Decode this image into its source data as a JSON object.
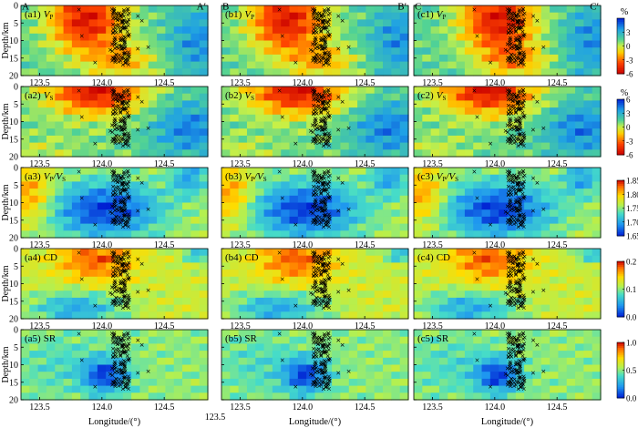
{
  "figure": {
    "xlabel": "Longitude/(°)",
    "ylabel": "Depth/km",
    "xticks": [
      "123.5",
      "124.0",
      "124.5"
    ],
    "yticks": [
      "0",
      "5",
      "10",
      "15",
      "20"
    ],
    "profile_labels": [
      {
        "start": "A",
        "end": "A′"
      },
      {
        "start": "B",
        "end": "B′"
      },
      {
        "start": "C",
        "end": "C′"
      }
    ],
    "edge_tick": "123.5"
  },
  "chart_data": {
    "type": "heatmap",
    "x_range": [
      123.35,
      124.85
    ],
    "y_range": [
      0,
      20
    ],
    "y_inverted": true,
    "rows": [
      {
        "row": "Vp",
        "panel_labels": [
          {
            "id": "(a1)",
            "text": "V",
            "sub": "P"
          },
          {
            "id": "(b1)",
            "text": "V",
            "sub": "P"
          },
          {
            "id": "(c1)",
            "text": "V",
            "sub": "P"
          }
        ],
        "colorbar": {
          "unit": "%",
          "ticks": [
            "3",
            "0",
            "-3",
            "-6"
          ],
          "range": [
            -6,
            6
          ],
          "palette": "anomaly"
        }
      },
      {
        "row": "Vs",
        "panel_labels": [
          {
            "id": "(a2)",
            "text": "V",
            "sub": "S"
          },
          {
            "id": "(b2)",
            "text": "V",
            "sub": "S"
          },
          {
            "id": "(c2)",
            "text": "V",
            "sub": "S"
          }
        ],
        "colorbar": {
          "unit": "%",
          "ticks": [
            "6",
            "3",
            "0",
            "-3",
            "-6"
          ],
          "range": [
            -6,
            6
          ],
          "palette": "anomaly"
        }
      },
      {
        "row": "Vp/Vs",
        "panel_labels": [
          {
            "id": "(a3)",
            "text": "V",
            "sub": "P",
            "text2": "/V",
            "sub2": "S"
          },
          {
            "id": "(b3)",
            "text": "V",
            "sub": "P",
            "text2": "/V",
            "sub2": "S"
          },
          {
            "id": "(c3)",
            "text": "V",
            "sub": "P",
            "text2": "/V",
            "sub2": "S"
          }
        ],
        "colorbar": {
          "unit": "",
          "ticks": [
            "1.85",
            "1.80",
            "1.75",
            "1.70",
            "1.65"
          ],
          "range": [
            1.65,
            1.85
          ],
          "palette": "ratio"
        }
      },
      {
        "row": "CD",
        "panel_labels": [
          {
            "id": "(a4)",
            "text": "CD"
          },
          {
            "id": "(b4)",
            "text": "CD"
          },
          {
            "id": "(c4)",
            "text": "CD"
          }
        ],
        "colorbar": {
          "unit": "",
          "ticks": [
            "0.2",
            "0.1",
            "0.0"
          ],
          "range": [
            0,
            0.2
          ],
          "palette": "ratio"
        }
      },
      {
        "row": "SR",
        "panel_labels": [
          {
            "id": "(a5)",
            "text": "SR"
          },
          {
            "id": "(b5)",
            "text": "SR"
          },
          {
            "id": "(c5)",
            "text": "SR"
          }
        ],
        "colorbar": {
          "unit": "",
          "ticks": [
            "1.0",
            "0.5",
            "0.0"
          ],
          "range": [
            0,
            1
          ],
          "palette": "ratio"
        }
      }
    ],
    "seismicity": {
      "marker": "x",
      "longitude_center": 124.15,
      "depth_range": [
        0,
        17
      ]
    }
  }
}
